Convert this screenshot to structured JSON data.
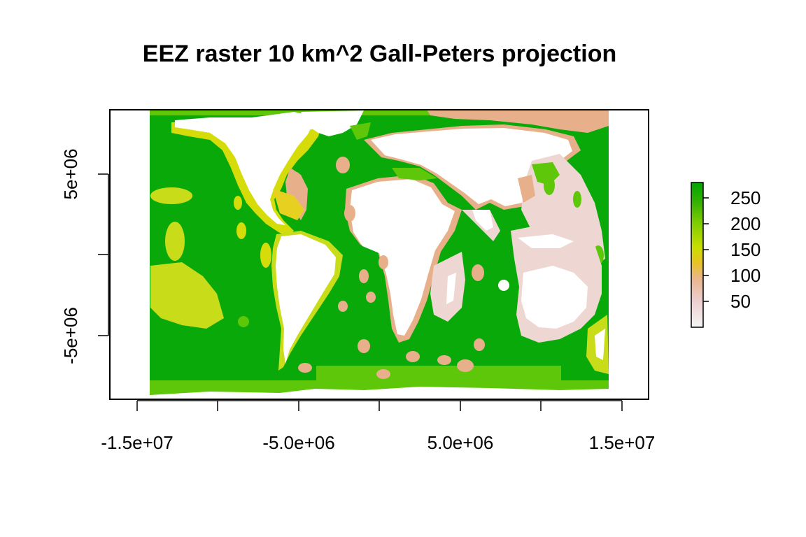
{
  "title": "EEZ raster 10 km^2 Gall-Peters projection",
  "x_ticks": [
    "-1.5e+07",
    "-5.0e+06",
    "5.0e+06",
    "1.5e+07"
  ],
  "y_ticks": [
    "5e+06",
    "-5e+06"
  ],
  "legend": {
    "ticks": [
      "250",
      "200",
      "150",
      "100",
      "50"
    ],
    "range": [
      0,
      280
    ],
    "colors": [
      "#f2f2f2",
      "#eccfcf",
      "#ebb590",
      "#e6c322",
      "#c8de00",
      "#7fcd00",
      "#36b200",
      "#00a600"
    ]
  },
  "colors": {
    "ocean": "#09a90a",
    "land": "#ffffff",
    "coast_yellow": "#d5dc0a",
    "coast_tan": "#e8b08a",
    "pink": "#eed7d3",
    "light_green": "#5ec70a"
  }
}
